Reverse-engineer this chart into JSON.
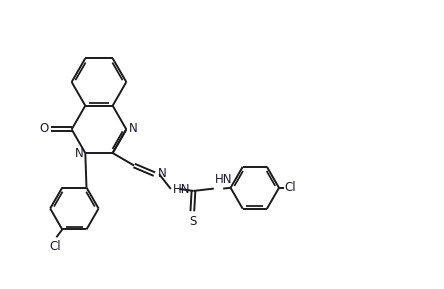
{
  "bg": "#ffffff",
  "lc": "#1a1a1a",
  "tc": "#1a1a2e",
  "lw": 1.4,
  "fs": 8.5,
  "xlim": [
    0.0,
    10.5
  ],
  "ylim": [
    -1.2,
    6.2
  ]
}
